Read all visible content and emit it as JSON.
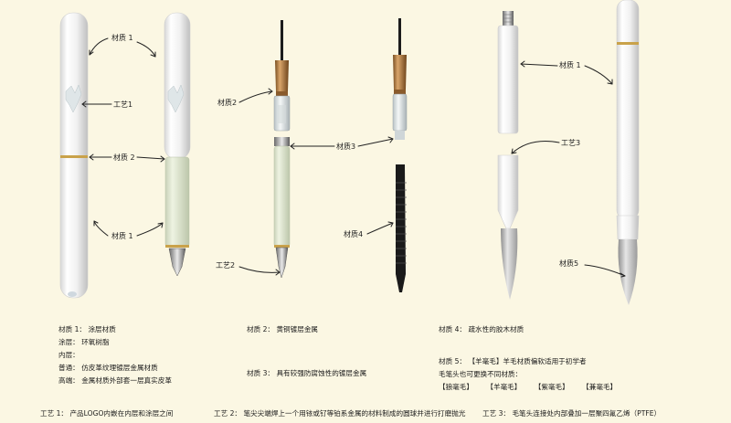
{
  "labels": {
    "material1": "材质 1",
    "material1_b": "材质 1",
    "material1_c": "材质 1",
    "material2": "材质 2",
    "material2_b": "材质2",
    "material3": "材质3",
    "material4": "材质4",
    "material5": "材质5",
    "craft1": "工艺1",
    "craft2": "工艺2",
    "craft3": "工艺3"
  },
  "notes": {
    "col1": [
      "材质 1：  涂层材质",
      "涂层：  环氧树脂",
      "内层：",
      "普通：  仿皮革纹理镀层金属材质",
      "高端：  金属材质外部套一层真实皮革"
    ],
    "col2_a": "材质 2：  黄铜镀层金属",
    "col2_b": "材质 3：  具有较强防腐蚀性的镀层金属",
    "col3_a": "材质 4：  疏水性的胶木材质",
    "col3_b": "材质 5：  【羊毫毛】羊毛材质偏软适用于初学者",
    "col3_c": "毛笔头也可更换不同材质：",
    "brush_types": [
      "【狼毫毛】",
      "【羊毫毛】",
      "【紫毫毛】",
      "【兼毫毛】"
    ],
    "craft_notes": [
      "工艺 1：  产品LOGO内嵌在内层和涂层之间",
      "工艺 2：  笔尖尖端焊上一个用铱或钌等铂系金属的材料制成的圆球并进行打磨抛光",
      "工艺 3：  毛笔头连接处内部叠加一层聚四氟乙烯（PTFE）"
    ]
  },
  "colors": {
    "background": "#fbf7e3",
    "pen_body": "#f2f2f1",
    "grip": "#e3ead3",
    "gold_band": "#c9a24a",
    "brass": "#b07a3c",
    "black": "#1c1c1c",
    "brush_hair": "#bdbdbd"
  }
}
